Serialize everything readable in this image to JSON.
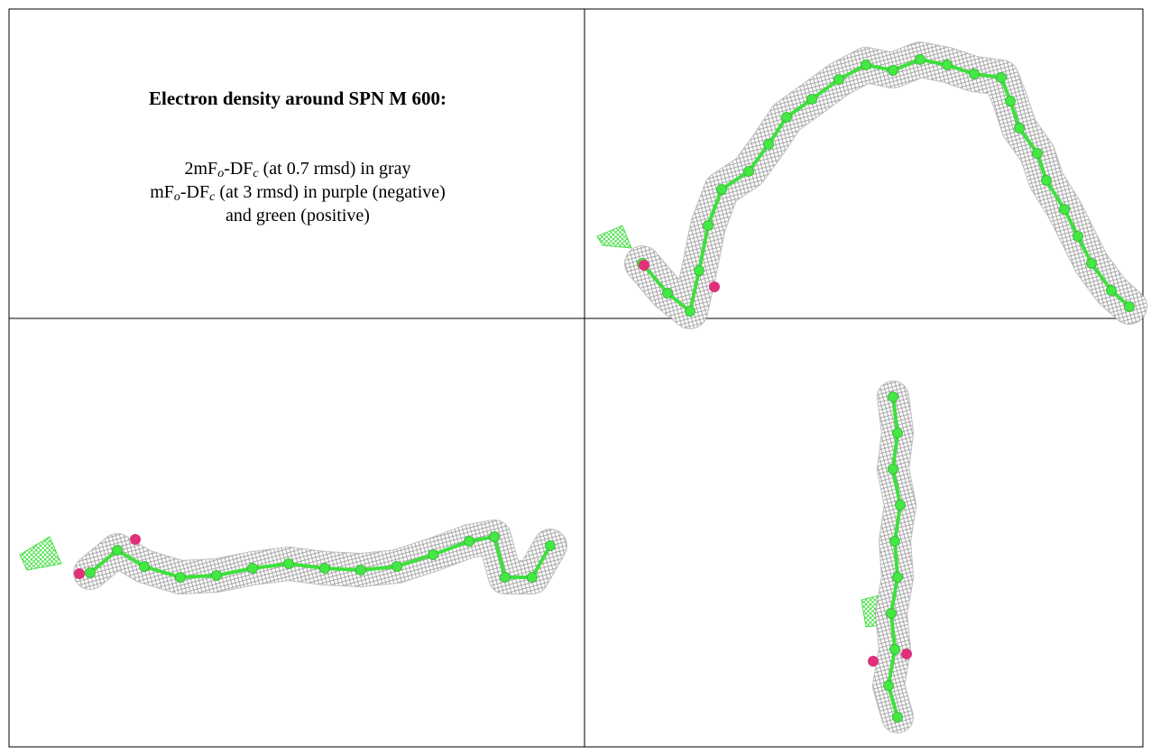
{
  "caption": {
    "title": "Electron density around SPN M 600:",
    "lines": [
      [
        "2mF",
        "o",
        "-DF",
        "c",
        " (at 0.7 rmsd) in gray"
      ],
      [
        "mF",
        "o",
        "-DF",
        "c",
        " (at 3 rmsd) in purple (negative)"
      ],
      [
        "and green (positive)"
      ]
    ]
  }
}
